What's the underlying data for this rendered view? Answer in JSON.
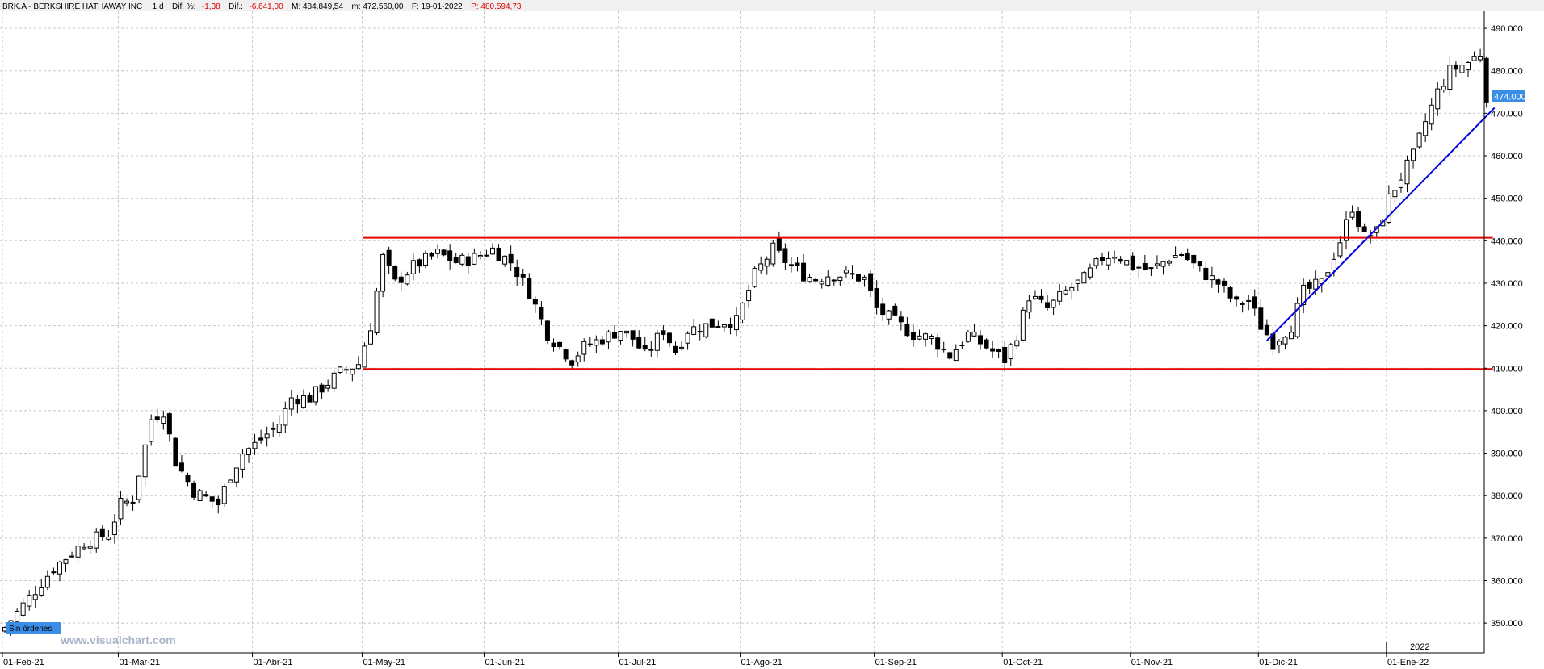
{
  "header": {
    "symbol": "BRK.A - BERKSHIRE HATHAWAY INC",
    "interval": "1 d",
    "dif_pct_label": "Dif. %:",
    "dif_pct_value": "-1,38",
    "dif_label": "Dif.:",
    "dif_value": "-6.641,00",
    "max_label": "M: 484.849,54",
    "min_label": "m: 472.560,00",
    "date_label": "F: 19-01-2022",
    "price_label": "P: 480.594,73"
  },
  "orders_badge": "Sin órdenes",
  "watermark": "www.visualchart.com",
  "last_price_label": "474.000",
  "year_label": "2022",
  "colors": {
    "up_body": "#ffffff",
    "down_body": "#000000",
    "channel_line": "#e60000",
    "trend_line": "#0000e0",
    "price_tag": "#3a8ee6",
    "grid": "#c8c8c8"
  },
  "chart_data": {
    "type": "candlestick",
    "ylim": [
      343000,
      494000
    ],
    "grid": true,
    "y_ticks": [
      "350.000",
      "360.000",
      "370.000",
      "380.000",
      "390.000",
      "400.000",
      "410.000",
      "420.000",
      "430.000",
      "440.000",
      "450.000",
      "460.000",
      "470.000",
      "480.000",
      "490.000"
    ],
    "x_ticks": [
      "01-Feb-21",
      "01-Mar-21",
      "01-Abr-21",
      "01-May-21",
      "01-Jun-21",
      "01-Jul-21",
      "01-Ago-21",
      "01-Sep-21",
      "01-Oct-21",
      "01-Nov-21",
      "01-Dic-21",
      "01-Ene-22"
    ],
    "x_tick_index": [
      0,
      19,
      41,
      59,
      79,
      101,
      121,
      143,
      164,
      185,
      206,
      227
    ],
    "close_path": [
      [
        0,
        349000
      ],
      [
        8,
        363000
      ],
      [
        13,
        369000
      ],
      [
        17,
        371000
      ],
      [
        19,
        378000
      ],
      [
        21,
        379000
      ],
      [
        24,
        398000
      ],
      [
        26,
        400000
      ],
      [
        28,
        388000
      ],
      [
        31,
        381000
      ],
      [
        35,
        378000
      ],
      [
        37,
        385000
      ],
      [
        39,
        390000
      ],
      [
        41,
        392000
      ],
      [
        45,
        397000
      ],
      [
        47,
        403000
      ],
      [
        50,
        403000
      ],
      [
        55,
        409000
      ],
      [
        58,
        411000
      ],
      [
        60,
        420000
      ],
      [
        62,
        436000
      ],
      [
        64,
        430000
      ],
      [
        67,
        434000
      ],
      [
        71,
        437000
      ],
      [
        74,
        435000
      ],
      [
        77,
        436000
      ],
      [
        80,
        438000
      ],
      [
        83,
        435000
      ],
      [
        86,
        428000
      ],
      [
        89,
        418000
      ],
      [
        93,
        412000
      ],
      [
        95,
        415000
      ],
      [
        98,
        417000
      ],
      [
        101,
        419000
      ],
      [
        103,
        417000
      ],
      [
        105,
        413000
      ],
      [
        108,
        419000
      ],
      [
        110,
        414000
      ],
      [
        112,
        419000
      ],
      [
        115,
        420000
      ],
      [
        118,
        421000
      ],
      [
        120,
        421000
      ],
      [
        123,
        432000
      ],
      [
        126,
        438000
      ],
      [
        129,
        434000
      ],
      [
        131,
        432000
      ],
      [
        133,
        431000
      ],
      [
        135,
        432000
      ],
      [
        138,
        432000
      ],
      [
        141,
        431000
      ],
      [
        143,
        424000
      ],
      [
        146,
        421000
      ],
      [
        149,
        418000
      ],
      [
        152,
        417000
      ],
      [
        155,
        413000
      ],
      [
        158,
        418000
      ],
      [
        161,
        415000
      ],
      [
        164,
        412000
      ],
      [
        166,
        418000
      ],
      [
        168,
        427000
      ],
      [
        171,
        424000
      ],
      [
        174,
        428000
      ],
      [
        177,
        431000
      ],
      [
        180,
        436000
      ],
      [
        182,
        437000
      ],
      [
        185,
        434000
      ],
      [
        188,
        433000
      ],
      [
        191,
        436000
      ],
      [
        193,
        437000
      ],
      [
        196,
        433000
      ],
      [
        199,
        430000
      ],
      [
        202,
        425000
      ],
      [
        204,
        426000
      ],
      [
        206,
        420000
      ],
      [
        208,
        416000
      ],
      [
        211,
        420000
      ],
      [
        213,
        428000
      ],
      [
        216,
        430000
      ],
      [
        219,
        440000
      ],
      [
        221,
        448000
      ],
      [
        223,
        441000
      ],
      [
        225,
        442000
      ],
      [
        227,
        450000
      ],
      [
        229,
        455000
      ],
      [
        231,
        460000
      ],
      [
        233,
        468000
      ],
      [
        235,
        475000
      ],
      [
        237,
        480000
      ],
      [
        240,
        482000
      ],
      [
        242,
        484000
      ],
      [
        243,
        474000
      ]
    ],
    "candles_total": 244,
    "candles_seed": 7,
    "support": {
      "y": 409800,
      "x_from": 59,
      "x_to": 243
    },
    "resistance": {
      "y": 440700,
      "x_from": 59,
      "x_to": 243
    },
    "trendline": {
      "from": [
        207,
        416500
      ],
      "to": [
        243,
        471300
      ]
    }
  }
}
